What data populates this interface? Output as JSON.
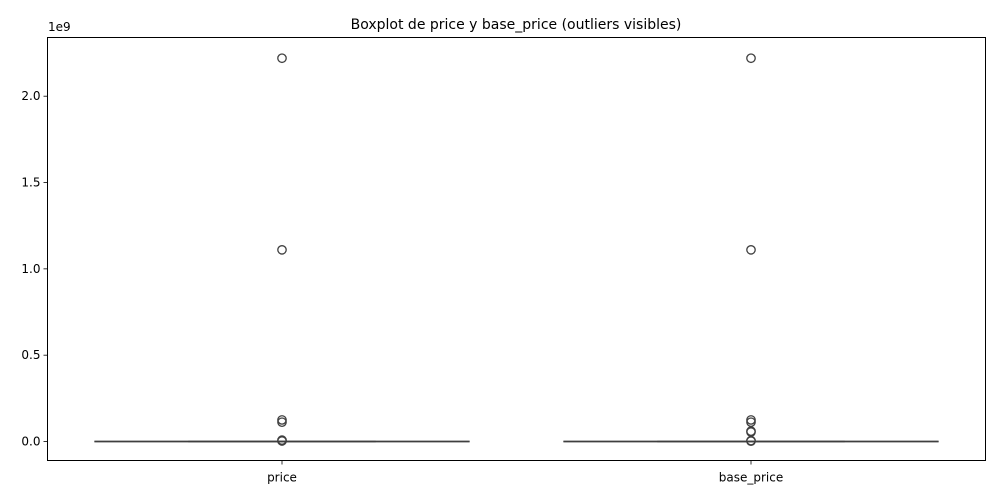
{
  "chart_data": {
    "type": "boxplot",
    "title": "Boxplot de price y base_price (outliers visibles)",
    "xlabel": "",
    "ylabel": "",
    "y_offset_label": "1e9",
    "ylim": [
      -0.11,
      2.34
    ],
    "yticks": [
      0.0,
      0.5,
      1.0,
      1.5,
      2.0
    ],
    "ytick_labels": [
      "0.0",
      "0.5",
      "1.0",
      "1.5",
      "2.0"
    ],
    "grid": false,
    "legend": "none",
    "box_color": "#3f3f3f",
    "series": [
      {
        "category": "price",
        "q1": 0.0,
        "median": 0.0,
        "q3": 0.0,
        "whisker_low": 0.0,
        "whisker_high": 0.0,
        "outliers": [
          2.22,
          1.11,
          0.125,
          0.112,
          0.008,
          0.003
        ]
      },
      {
        "category": "base_price",
        "q1": 0.0,
        "median": 0.0,
        "q3": 0.0,
        "whisker_low": 0.0,
        "whisker_high": 0.0,
        "outliers": [
          2.22,
          1.11,
          0.125,
          0.112,
          0.06,
          0.055,
          0.005,
          0.002
        ]
      }
    ]
  }
}
